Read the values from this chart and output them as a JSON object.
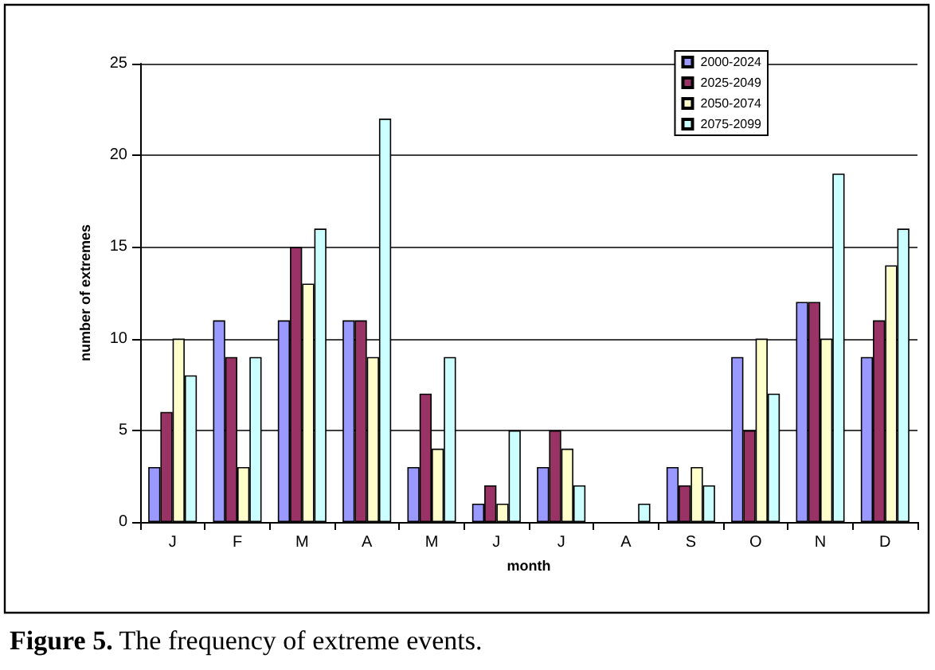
{
  "chart_data": {
    "type": "bar",
    "categories": [
      "J",
      "F",
      "M",
      "A",
      "M",
      "J",
      "J",
      "A",
      "S",
      "O",
      "N",
      "D"
    ],
    "series": [
      {
        "name": "2000-2024",
        "color": "#9999ff",
        "values": [
          3,
          11,
          11,
          11,
          3,
          1,
          3,
          0,
          3,
          9,
          12,
          9
        ]
      },
      {
        "name": "2025-2049",
        "color": "#993366",
        "values": [
          6,
          9,
          15,
          11,
          7,
          2,
          5,
          0,
          2,
          5,
          12,
          11
        ]
      },
      {
        "name": "2050-2074",
        "color": "#ffffcc",
        "values": [
          10,
          3,
          13,
          9,
          4,
          1,
          4,
          0,
          3,
          10,
          10,
          14
        ]
      },
      {
        "name": "2075-2099",
        "color": "#ccffff",
        "values": [
          8,
          9,
          16,
          22,
          9,
          5,
          2,
          1,
          2,
          7,
          19,
          16
        ]
      }
    ],
    "xlabel": "month",
    "ylabel": "number of extremes",
    "ylim": [
      0,
      25
    ],
    "yticks": [
      0,
      5,
      10,
      15,
      20,
      25
    ],
    "grid": "y",
    "legend": "top right",
    "annotations": [
      "Figure 5. The frequency of extreme events."
    ]
  }
}
